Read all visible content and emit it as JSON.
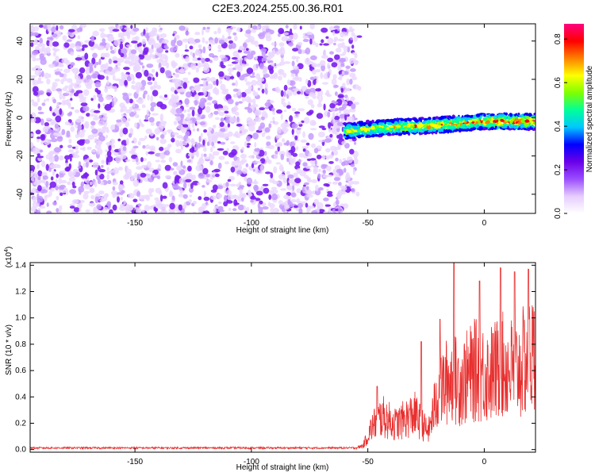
{
  "title": "C2E3.2024.255.00.36.R01",
  "chart_data": [
    {
      "type": "heatmap",
      "xlabel": "Height of straight line (km)",
      "ylabel": "Frequency (Hz)",
      "xlim": [
        -195,
        22
      ],
      "ylim": [
        -50,
        49
      ],
      "xticks": [
        -150,
        -100,
        -50,
        0
      ],
      "yticks": [
        -40,
        -20,
        0,
        20,
        40
      ],
      "noise_region_x": [
        -195,
        -55
      ],
      "noise_region_y": [
        -50,
        48
      ],
      "signal_band": {
        "x_range": [
          -60,
          22
        ],
        "center_freq": [
          [
            -60,
            -7
          ],
          [
            -40,
            -5
          ],
          [
            -20,
            -4
          ],
          [
            0,
            -2
          ],
          [
            22,
            -2
          ]
        ],
        "half_width_hz": 4
      },
      "colorbar": {
        "label": "Normalized spectral amplitude",
        "range": [
          0,
          0.87
        ],
        "ticks": [
          "0.0",
          "0.2",
          "0.4",
          "0.6",
          "0.8"
        ],
        "colors": [
          "#ffffff",
          "#e6ccff",
          "#9a4dff",
          "#6a00e8",
          "#0000ff",
          "#00c8ff",
          "#00ff9a",
          "#7fff00",
          "#ffff00",
          "#ff8000",
          "#ff0000",
          "#ff0080"
        ]
      }
    },
    {
      "type": "line",
      "xlabel": "Height of straight line (km)",
      "ylabel": "SNR (10 * v/v)",
      "y_scale_note": "(x10",
      "y_scale_exp": "4",
      "y_scale_close": ")",
      "xlim": [
        -195,
        22
      ],
      "ylim": [
        -0.02,
        1.42
      ],
      "xticks": [
        -150,
        -100,
        -50,
        0
      ],
      "yticks": [
        "0.0",
        "0.2",
        "0.4",
        "0.6",
        "0.8",
        "1.0",
        "1.2",
        "1.4"
      ],
      "color": "#e8302f",
      "envelope": [
        [
          -195,
          0.02
        ],
        [
          -55,
          0.02
        ],
        [
          -52,
          0.05
        ],
        [
          -48,
          0.3
        ],
        [
          -44,
          0.42
        ],
        [
          -38,
          0.32
        ],
        [
          -30,
          0.45
        ],
        [
          -24,
          0.22
        ],
        [
          -20,
          0.7
        ],
        [
          -15,
          0.9
        ],
        [
          -10,
          0.85
        ],
        [
          -4,
          1.0
        ],
        [
          2,
          0.95
        ],
        [
          8,
          1.05
        ],
        [
          14,
          1.0
        ],
        [
          20,
          1.2
        ],
        [
          22,
          1.15
        ]
      ],
      "peaks": [
        [
          -46,
          0.48
        ],
        [
          -27,
          0.82
        ],
        [
          -19,
          0.99
        ],
        [
          -13,
          1.42
        ],
        [
          -2,
          1.28
        ],
        [
          7,
          1.38
        ],
        [
          13,
          1.35
        ],
        [
          19,
          1.37
        ]
      ]
    }
  ]
}
